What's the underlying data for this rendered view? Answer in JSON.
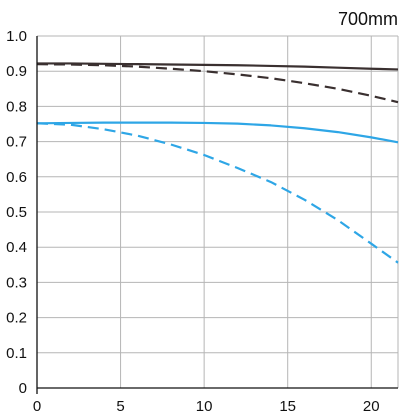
{
  "chart_data": {
    "type": "line",
    "title": "700mm",
    "xlabel": "",
    "ylabel": "",
    "xlim": [
      0,
      21.6
    ],
    "ylim": [
      0,
      1.0
    ],
    "x_ticks": [
      0,
      5,
      10,
      15,
      20
    ],
    "y_ticks": [
      0,
      0.1,
      0.2,
      0.3,
      0.4,
      0.5,
      0.6,
      0.7,
      0.8,
      0.9,
      1.0
    ],
    "y_tick_labels": [
      "0",
      "0.1",
      "0.2",
      "0.3",
      "0.4",
      "0.5",
      "0.6",
      "0.7",
      "0.8",
      "0.9",
      "1.0"
    ],
    "grid": true,
    "legend": "none",
    "series": [
      {
        "color": "#3a3030",
        "style": "solid",
        "x": [
          0,
          2,
          4,
          6,
          8,
          10,
          12,
          14,
          16,
          18,
          20,
          21.6
        ],
        "y": [
          0.922,
          0.922,
          0.921,
          0.92,
          0.919,
          0.918,
          0.917,
          0.915,
          0.913,
          0.91,
          0.907,
          0.905
        ]
      },
      {
        "color": "#3a3030",
        "style": "dashed",
        "x": [
          0,
          2,
          4,
          6,
          8,
          10,
          12,
          14,
          16,
          18,
          20,
          21.6
        ],
        "y": [
          0.92,
          0.919,
          0.917,
          0.913,
          0.907,
          0.9,
          0.891,
          0.88,
          0.866,
          0.85,
          0.83,
          0.812
        ]
      },
      {
        "color": "#2ea6e6",
        "style": "solid",
        "x": [
          0,
          2,
          4,
          6,
          8,
          10,
          12,
          14,
          16,
          18,
          20,
          21.6
        ],
        "y": [
          0.752,
          0.753,
          0.754,
          0.754,
          0.754,
          0.753,
          0.751,
          0.746,
          0.738,
          0.727,
          0.712,
          0.698
        ]
      },
      {
        "color": "#2ea6e6",
        "style": "dashed",
        "x": [
          0,
          2,
          4,
          6,
          8,
          10,
          12,
          14,
          16,
          18,
          20,
          21.6
        ],
        "y": [
          0.752,
          0.748,
          0.735,
          0.717,
          0.692,
          0.662,
          0.625,
          0.585,
          0.535,
          0.477,
          0.41,
          0.356
        ]
      }
    ]
  }
}
